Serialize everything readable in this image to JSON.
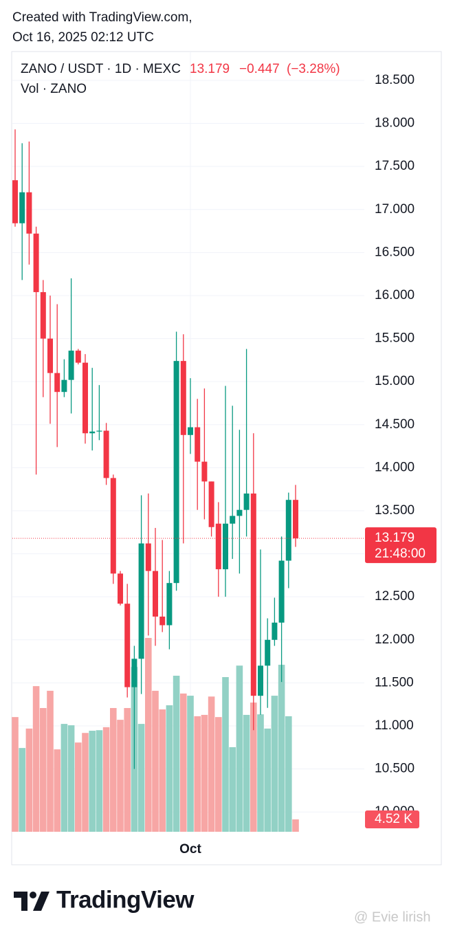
{
  "header": {
    "line1": "Created with TradingView.com,",
    "line2": "Oct 16, 2025 02:12 UTC"
  },
  "chart_data": {
    "type": "candlestick",
    "title": "ZANO / USDT · 1D · MEXC",
    "volume_title": "Vol · ZANO",
    "last_price": 13.179,
    "change": {
      "value": -0.447,
      "label": "−0.447"
    },
    "change_percent": {
      "value": -3.28,
      "label": "(−3.28%)"
    },
    "countdown": "21:48:00",
    "last_volume": {
      "value": 4520,
      "label": "4.52 K"
    },
    "categories": [
      null,
      null,
      null,
      null,
      null,
      null,
      null,
      null,
      null,
      null,
      null,
      null,
      null,
      null,
      null,
      null,
      null,
      null,
      null,
      null,
      null,
      null,
      null,
      null,
      null,
      "Oct",
      null,
      null,
      null,
      null,
      null,
      null,
      null,
      null,
      null,
      null,
      null,
      null,
      null,
      null,
      null
    ],
    "open": [
      17.34,
      16.84,
      17.2,
      16.72,
      16.04,
      15.5,
      15.1,
      14.88,
      15.02,
      15.36,
      15.22,
      14.4,
      14.42,
      14.43,
      13.88,
      12.77,
      12.42,
      11.45,
      11.78,
      13.12,
      12.8,
      12.27,
      12.17,
      12.66,
      15.24,
      14.38,
      14.47,
      14.07,
      13.84,
      13.35,
      12.82,
      13.35,
      13.44,
      13.51,
      13.7,
      11.35,
      11.7,
      12.0,
      12.2,
      12.92,
      13.626
    ],
    "high": [
      17.93,
      17.77,
      17.79,
      16.8,
      16.18,
      16.0,
      15.9,
      15.26,
      16.2,
      15.38,
      15.32,
      15.16,
      14.96,
      14.52,
      13.92,
      12.8,
      12.65,
      11.93,
      13.68,
      13.7,
      13.3,
      13.16,
      12.8,
      15.58,
      15.55,
      15.04,
      14.8,
      14.92,
      13.84,
      13.6,
      14.95,
      14.72,
      14.44,
      15.38,
      14.4,
      13.05,
      12.25,
      12.49,
      13.2,
      13.71,
      13.8
    ],
    "low": [
      16.8,
      16.18,
      16.36,
      13.92,
      14.82,
      14.51,
      14.24,
      14.82,
      14.63,
      15.2,
      14.28,
      14.2,
      14.32,
      13.8,
      12.65,
      12.4,
      11.33,
      10.5,
      11.37,
      12.05,
      11.93,
      12.09,
      11.89,
      12.57,
      13.12,
      14.16,
      13.51,
      13.4,
      13.2,
      12.5,
      12.5,
      12.94,
      12.77,
      13.2,
      10.95,
      11.13,
      11.21,
      11.93,
      11.51,
      12.6,
      13.08
    ],
    "close": [
      16.84,
      17.2,
      16.72,
      16.04,
      15.5,
      15.1,
      14.88,
      15.02,
      15.36,
      15.22,
      14.4,
      14.42,
      14.43,
      13.88,
      12.77,
      12.42,
      11.45,
      11.78,
      13.12,
      12.8,
      12.27,
      12.17,
      12.66,
      15.24,
      14.38,
      14.47,
      14.07,
      13.84,
      13.31,
      12.82,
      13.35,
      13.44,
      13.51,
      13.7,
      11.35,
      11.7,
      12.0,
      12.2,
      12.92,
      13.626,
      13.179
    ],
    "volume": [
      41900,
      30600,
      37700,
      53200,
      45200,
      51500,
      30100,
      39400,
      38900,
      32600,
      36100,
      36900,
      37100,
      38200,
      45200,
      40900,
      45200,
      60200,
      39400,
      70800,
      51500,
      44700,
      46200,
      57000,
      50500,
      49700,
      42200,
      42700,
      49400,
      41900,
      56500,
      30900,
      60700,
      42700,
      47200,
      42900,
      37700,
      49700,
      61000,
      42200,
      4520
    ],
    "up_color": "#089981",
    "down_color": "#f23645",
    "volume_up_color": "#92d1c5",
    "volume_down_color": "#f7a6a5",
    "ylim": [
      9.77,
      18.835
    ],
    "y2lim": [
      0,
      285000
    ],
    "yticks": [
      {
        "value": 10,
        "label": "10.000"
      },
      {
        "value": 10.5,
        "label": "10.500"
      },
      {
        "value": 11,
        "label": "11.000"
      },
      {
        "value": 11.5,
        "label": "11.500"
      },
      {
        "value": 12,
        "label": "12.000"
      },
      {
        "value": 12.5,
        "label": "12.500"
      },
      {
        "value": 13,
        "label": "13.000"
      },
      {
        "value": 13.5,
        "label": "13.500"
      },
      {
        "value": 14,
        "label": "14.000"
      },
      {
        "value": 14.5,
        "label": "14.500"
      },
      {
        "value": 15,
        "label": "15.000"
      },
      {
        "value": 15.5,
        "label": "15.500"
      },
      {
        "value": 16,
        "label": "16.000"
      },
      {
        "value": 16.5,
        "label": "16.500"
      },
      {
        "value": 17,
        "label": "17.000"
      },
      {
        "value": 17.5,
        "label": "17.500"
      },
      {
        "value": 18,
        "label": "18.000"
      },
      {
        "value": 18.5,
        "label": "18.500"
      }
    ],
    "grid": true
  },
  "footer": {
    "logo": "TradingView",
    "watermark": "@ Evie lirish"
  }
}
